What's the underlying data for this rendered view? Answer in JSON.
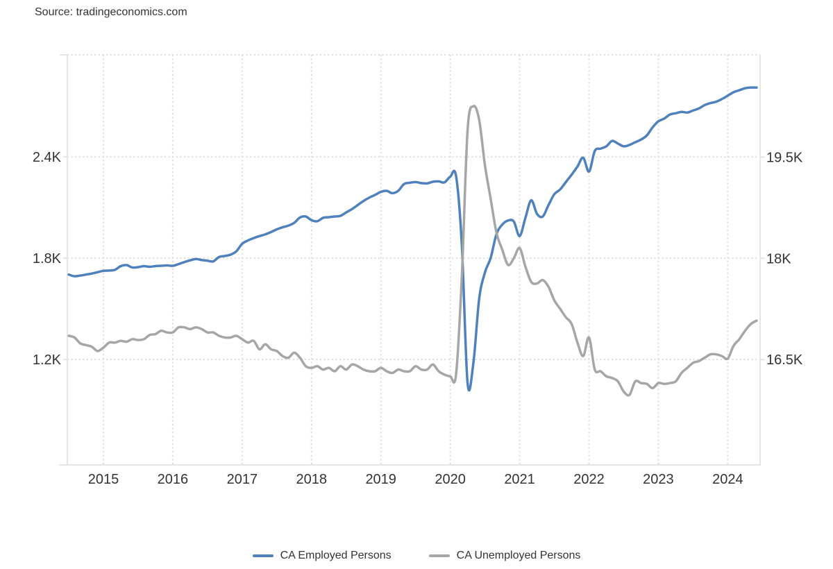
{
  "source_label": "Source: tradingeconomics.com",
  "colors": {
    "employed_line": "#4f81bd",
    "unemployed_line": "#a6a6a6",
    "gridline": "#dcdcdc",
    "axis_border": "#e6e6e6",
    "text": "#333333",
    "background": "#ffffff"
  },
  "legend": {
    "items": [
      {
        "label": "CA Employed Persons",
        "color": "#4f81bd"
      },
      {
        "label": "CA Unemployed Persons",
        "color": "#a6a6a6"
      }
    ]
  },
  "chart_data": {
    "type": "line",
    "frequency": "monthly",
    "start_month": "2014-07",
    "end_month": "2024-06",
    "grid": true,
    "legend_position": "bottom-center",
    "x_axis": {
      "tick_labels": [
        "2015",
        "2016",
        "2017",
        "2018",
        "2019",
        "2020",
        "2021",
        "2022",
        "2023",
        "2024"
      ],
      "tick_month_indices": [
        6,
        18,
        30,
        42,
        54,
        66,
        78,
        90,
        102,
        114
      ]
    },
    "left_axis": {
      "min": 575,
      "max": 3005,
      "units": "thousand persons",
      "series": "CA Unemployed Persons",
      "ticks": [
        {
          "value": 2400,
          "label": "2.4K"
        },
        {
          "value": 1800,
          "label": "1.8K"
        },
        {
          "value": 1200,
          "label": "1.2K"
        }
      ]
    },
    "right_axis": {
      "min": 14940,
      "max": 21015,
      "units": "thousand persons",
      "series": "CA Employed Persons",
      "ticks": [
        {
          "value": 19500,
          "label": "19.5K"
        },
        {
          "value": 18000,
          "label": "18K"
        },
        {
          "value": 16500,
          "label": "16.5K"
        }
      ]
    },
    "series": [
      {
        "name": "CA Employed Persons",
        "color": "#4f81bd",
        "axis": "right",
        "values": [
          17760,
          17735,
          17745,
          17760,
          17775,
          17795,
          17815,
          17820,
          17830,
          17885,
          17900,
          17865,
          17870,
          17885,
          17875,
          17885,
          17890,
          17895,
          17890,
          17915,
          17945,
          17970,
          17990,
          17975,
          17965,
          17955,
          18020,
          18035,
          18055,
          18105,
          18215,
          18265,
          18300,
          18330,
          18355,
          18390,
          18430,
          18460,
          18485,
          18525,
          18605,
          18620,
          18565,
          18550,
          18600,
          18610,
          18620,
          18630,
          18680,
          18730,
          18790,
          18850,
          18900,
          18940,
          18985,
          19000,
          18965,
          19000,
          19100,
          19120,
          19130,
          19115,
          19110,
          19135,
          19140,
          19125,
          19210,
          19220,
          18200,
          16150,
          16450,
          17400,
          17790,
          18010,
          18360,
          18500,
          18560,
          18545,
          18330,
          18600,
          18860,
          18660,
          18620,
          18790,
          18950,
          19020,
          19130,
          19240,
          19360,
          19490,
          19285,
          19590,
          19625,
          19660,
          19740,
          19700,
          19660,
          19680,
          19720,
          19760,
          19820,
          19940,
          20030,
          20070,
          20130,
          20150,
          20170,
          20160,
          20190,
          20220,
          20270,
          20300,
          20320,
          20360,
          20410,
          20460,
          20490,
          20520,
          20530,
          20530
        ]
      },
      {
        "name": "CA Unemployed Persons",
        "color": "#a6a6a6",
        "axis": "left",
        "values": [
          1340,
          1330,
          1295,
          1285,
          1275,
          1250,
          1270,
          1300,
          1300,
          1310,
          1305,
          1320,
          1315,
          1320,
          1345,
          1350,
          1370,
          1360,
          1360,
          1390,
          1390,
          1380,
          1390,
          1380,
          1360,
          1360,
          1340,
          1330,
          1330,
          1340,
          1320,
          1300,
          1310,
          1260,
          1290,
          1260,
          1250,
          1220,
          1210,
          1240,
          1210,
          1160,
          1150,
          1160,
          1140,
          1150,
          1130,
          1160,
          1140,
          1170,
          1160,
          1140,
          1130,
          1130,
          1150,
          1130,
          1120,
          1140,
          1130,
          1130,
          1160,
          1140,
          1140,
          1170,
          1130,
          1110,
          1100,
          1110,
          1690,
          2560,
          2700,
          2620,
          2350,
          2150,
          1950,
          1850,
          1760,
          1800,
          1860,
          1750,
          1660,
          1650,
          1670,
          1630,
          1550,
          1500,
          1450,
          1410,
          1300,
          1220,
          1330,
          1140,
          1130,
          1100,
          1090,
          1070,
          1010,
          990,
          1070,
          1060,
          1055,
          1030,
          1060,
          1055,
          1060,
          1070,
          1120,
          1150,
          1180,
          1190,
          1210,
          1230,
          1230,
          1220,
          1205,
          1280,
          1320,
          1370,
          1410,
          1430
        ]
      }
    ]
  }
}
